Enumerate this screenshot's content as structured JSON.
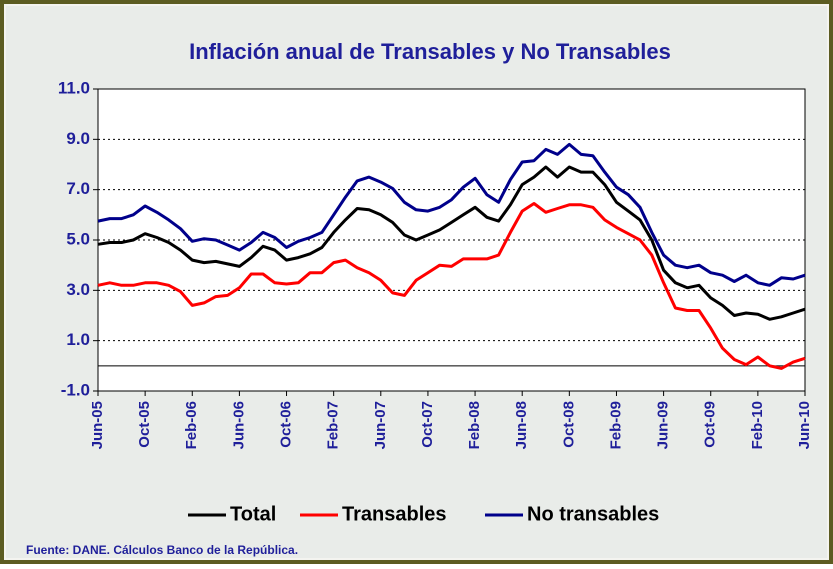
{
  "chart_data": {
    "type": "line",
    "title": "Inflación  anual de Transables y No Transables",
    "source": "Fuente: DANE. Cálculos Banco de la República.",
    "categories": [
      "Jun-05",
      null,
      null,
      null,
      "Oct-05",
      null,
      null,
      null,
      "Feb-06",
      null,
      null,
      null,
      "Jun-06",
      null,
      null,
      null,
      "Oct-06",
      null,
      null,
      null,
      "Feb-07",
      null,
      null,
      null,
      "Jun-07",
      null,
      null,
      null,
      "Oct-07",
      null,
      null,
      null,
      "Feb-08",
      null,
      null,
      null,
      "Jun-08",
      null,
      null,
      null,
      "Oct-08",
      null,
      null,
      null,
      "Feb-09",
      null,
      null,
      null,
      "Jun-09",
      null,
      null,
      null,
      "Oct-09",
      null,
      null,
      null,
      "Feb-10",
      null,
      null,
      null,
      "Jun-10"
    ],
    "series": [
      {
        "name": "Total",
        "color": "#000000",
        "values": [
          4.83,
          4.9,
          4.9,
          5.0,
          5.25,
          5.1,
          4.9,
          4.6,
          4.2,
          4.1,
          4.15,
          4.05,
          3.95,
          4.3,
          4.75,
          4.6,
          4.2,
          4.3,
          4.45,
          4.7,
          5.3,
          5.8,
          6.25,
          6.2,
          6.0,
          5.7,
          5.2,
          5.0,
          5.2,
          5.4,
          5.7,
          6.0,
          6.3,
          5.9,
          5.75,
          6.4,
          7.2,
          7.5,
          7.9,
          7.5,
          7.9,
          7.7,
          7.7,
          7.2,
          6.5,
          6.15,
          5.8,
          5.0,
          3.8,
          3.3,
          3.1,
          3.2,
          2.7,
          2.4,
          2.0,
          2.1,
          2.05,
          1.85,
          1.95,
          2.1,
          2.25
        ]
      },
      {
        "name": "Transables",
        "color": "#ff0000",
        "values": [
          3.2,
          3.3,
          3.2,
          3.2,
          3.3,
          3.3,
          3.2,
          2.95,
          2.4,
          2.5,
          2.75,
          2.8,
          3.1,
          3.65,
          3.65,
          3.3,
          3.25,
          3.3,
          3.7,
          3.7,
          4.1,
          4.2,
          3.9,
          3.7,
          3.4,
          2.9,
          2.8,
          3.4,
          3.7,
          4.0,
          3.95,
          4.25,
          4.25,
          4.25,
          4.4,
          5.3,
          6.15,
          6.45,
          6.1,
          6.25,
          6.4,
          6.4,
          6.3,
          5.8,
          5.5,
          5.25,
          5.0,
          4.4,
          3.3,
          2.3,
          2.2,
          2.2,
          1.5,
          0.7,
          0.25,
          0.05,
          0.35,
          0.0,
          -0.1,
          0.15,
          0.3
        ]
      },
      {
        "name": "No transables",
        "color": "#00008b",
        "values": [
          5.75,
          5.85,
          5.85,
          6.0,
          6.35,
          6.1,
          5.8,
          5.45,
          4.95,
          5.05,
          5.0,
          4.8,
          4.6,
          4.9,
          5.3,
          5.1,
          4.7,
          4.95,
          5.1,
          5.3,
          6.0,
          6.7,
          7.35,
          7.5,
          7.3,
          7.05,
          6.5,
          6.2,
          6.15,
          6.3,
          6.6,
          7.1,
          7.45,
          6.8,
          6.5,
          7.4,
          8.1,
          8.15,
          8.6,
          8.4,
          8.8,
          8.4,
          8.35,
          7.7,
          7.1,
          6.8,
          6.3,
          5.3,
          4.4,
          4.0,
          3.9,
          4.0,
          3.7,
          3.6,
          3.35,
          3.6,
          3.3,
          3.2,
          3.5,
          3.45,
          3.6
        ]
      }
    ],
    "ylim": [
      -1,
      11
    ],
    "yticks": [
      {
        "value": -1,
        "label": "-1.0"
      },
      {
        "value": 1,
        "label": "1.0"
      },
      {
        "value": 3,
        "label": "3.0"
      },
      {
        "value": 5,
        "label": "5.0"
      },
      {
        "value": 7,
        "label": "7.0"
      },
      {
        "value": 9,
        "label": "9.0"
      },
      {
        "value": 11,
        "label": "11.0"
      }
    ],
    "grid": true,
    "legend": "bottom"
  }
}
